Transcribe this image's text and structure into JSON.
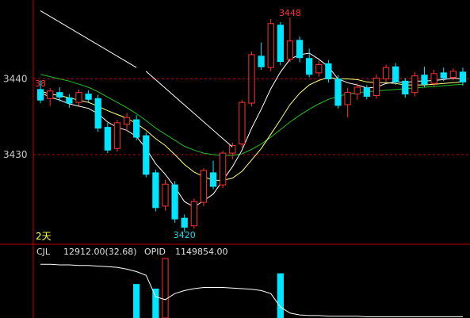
{
  "chart_data": {
    "type": "candlestick",
    "y_ticks": [
      {
        "value": 3440,
        "label": "3440"
      },
      {
        "value": 3430,
        "label": "3430"
      }
    ],
    "ylim": [
      3419,
      3450
    ],
    "colors": {
      "up": "#ff3030",
      "down": "#00e5ff",
      "ma_short": "#ffffff",
      "ma_mid": "#ffff80",
      "ma_long": "#20c020",
      "axis": "#c00000",
      "grid": "#c00000"
    },
    "annotations": {
      "peak": {
        "value": 3448,
        "label": "3448"
      },
      "trough": {
        "value": 3420,
        "label": "3420"
      },
      "left_mark": "38",
      "period": "2天"
    },
    "trendlines": [
      {
        "from": [
          0.0,
          3449.0
        ],
        "to": [
          10.0,
          3441.5
        ]
      },
      {
        "from": [
          11.0,
          3441.0
        ],
        "to": [
          20.0,
          3431.0
        ]
      }
    ],
    "candles": [
      [
        3438.6,
        3439.8,
        3436.8,
        3437.2
      ],
      [
        3437.4,
        3438.8,
        3436.4,
        3438.4
      ],
      [
        3438.2,
        3438.9,
        3437.0,
        3437.6
      ],
      [
        3437.5,
        3438.0,
        3436.2,
        3436.8
      ],
      [
        3436.9,
        3438.6,
        3436.5,
        3438.2
      ],
      [
        3438.0,
        3438.5,
        3436.9,
        3437.3
      ],
      [
        3437.4,
        3437.9,
        3433.0,
        3433.5
      ],
      [
        3433.6,
        3434.2,
        3430.2,
        3430.6
      ],
      [
        3430.8,
        3434.6,
        3430.4,
        3434.2
      ],
      [
        3434.0,
        3435.5,
        3433.1,
        3434.9
      ],
      [
        3434.6,
        3435.2,
        3431.9,
        3432.3
      ],
      [
        3432.5,
        3432.9,
        3427.0,
        3427.4
      ],
      [
        3427.6,
        3428.0,
        3422.5,
        3423.0
      ],
      [
        3423.2,
        3426.7,
        3422.6,
        3426.1
      ],
      [
        3426.0,
        3426.5,
        3421.0,
        3421.5
      ],
      [
        3421.6,
        3422.1,
        3419.8,
        3420.4
      ],
      [
        3420.6,
        3424.2,
        3420.2,
        3423.8
      ],
      [
        3423.7,
        3428.2,
        3423.2,
        3427.9
      ],
      [
        3427.6,
        3429.2,
        3425.4,
        3425.8
      ],
      [
        3426.0,
        3430.5,
        3425.6,
        3430.2
      ],
      [
        3430.2,
        3431.6,
        3429.4,
        3431.2
      ],
      [
        3431.4,
        3437.2,
        3430.9,
        3436.9
      ],
      [
        3436.8,
        3443.6,
        3436.4,
        3443.2
      ],
      [
        3443.0,
        3444.8,
        3441.2,
        3441.6
      ],
      [
        3441.5,
        3447.9,
        3441.0,
        3447.3
      ],
      [
        3447.1,
        3447.5,
        3441.8,
        3442.3
      ],
      [
        3442.6,
        3448.1,
        3442.2,
        3445.0
      ],
      [
        3445.1,
        3445.6,
        3442.2,
        3442.8
      ],
      [
        3442.7,
        3444.0,
        3440.2,
        3440.6
      ],
      [
        3440.8,
        3442.4,
        3440.3,
        3441.9
      ],
      [
        3442.0,
        3442.5,
        3439.5,
        3440.0
      ],
      [
        3440.0,
        3440.5,
        3436.1,
        3436.5
      ],
      [
        3436.6,
        3438.8,
        3434.9,
        3438.2
      ],
      [
        3438.0,
        3439.4,
        3437.2,
        3438.9
      ],
      [
        3438.8,
        3439.2,
        3437.3,
        3437.7
      ],
      [
        3437.8,
        3440.6,
        3437.4,
        3440.1
      ],
      [
        3440.0,
        3441.9,
        3439.6,
        3441.5
      ],
      [
        3441.6,
        3442.1,
        3439.2,
        3439.6
      ],
      [
        3439.7,
        3440.1,
        3437.5,
        3438.0
      ],
      [
        3438.2,
        3440.9,
        3437.7,
        3440.4
      ],
      [
        3440.5,
        3441.6,
        3438.9,
        3439.3
      ],
      [
        3439.4,
        3441.2,
        3439.0,
        3440.7
      ],
      [
        3440.8,
        3441.5,
        3439.7,
        3440.1
      ],
      [
        3440.2,
        3441.4,
        3439.8,
        3441.0
      ],
      [
        3440.9,
        3441.5,
        3439.1,
        3439.6
      ]
    ],
    "ma_short": [
      3438.2,
      3437.6,
      3437.2,
      3436.7,
      3436.4,
      3436.1,
      3435.4,
      3434.3,
      3433.6,
      3433.2,
      3432.4,
      3430.8,
      3428.8,
      3427.4,
      3425.7,
      3423.8,
      3423.1,
      3423.9,
      3424.8,
      3426.6,
      3428.4,
      3430.6,
      3433.5,
      3436.0,
      3438.7,
      3440.9,
      3442.6,
      3443.2,
      3443.4,
      3442.6,
      3441.6,
      3440.0,
      3439.5,
      3439.2,
      3438.8,
      3438.9,
      3439.4,
      3439.6,
      3439.5,
      3439.7,
      3439.7,
      3439.8,
      3439.9,
      3440.1,
      3440.0
    ],
    "ma_mid": [
      3438.4,
      3438.0,
      3437.8,
      3437.5,
      3437.2,
      3436.9,
      3436.4,
      3435.8,
      3435.3,
      3434.8,
      3434.1,
      3433.2,
      3432.1,
      3431.2,
      3430.0,
      3428.7,
      3427.7,
      3427.1,
      3426.6,
      3426.6,
      3426.9,
      3427.8,
      3429.3,
      3430.8,
      3432.7,
      3434.6,
      3436.6,
      3438.1,
      3439.2,
      3439.8,
      3440.2,
      3440.0,
      3440.0,
      3439.9,
      3439.6,
      3439.5,
      3439.5,
      3439.4,
      3439.2,
      3439.2,
      3439.2,
      3439.3,
      3439.4,
      3439.5,
      3439.6
    ],
    "ma_long": [
      3440.6,
      3440.3,
      3440.0,
      3439.7,
      3439.3,
      3438.9,
      3438.3,
      3437.6,
      3436.9,
      3436.2,
      3435.4,
      3434.5,
      3433.5,
      3432.7,
      3431.9,
      3431.1,
      3430.6,
      3430.2,
      3430.0,
      3429.9,
      3429.9,
      3430.1,
      3430.7,
      3431.4,
      3432.3,
      3433.3,
      3434.3,
      3435.2,
      3436.0,
      3436.7,
      3437.3,
      3437.7,
      3438.0,
      3438.2,
      3438.3,
      3438.4,
      3438.5,
      3438.6,
      3438.7,
      3438.8,
      3438.9,
      3439.0,
      3439.1,
      3439.2,
      3439.3
    ],
    "volume_panel": {
      "indicator_label": "CJL",
      "volume_text": "12912.00(32.68)",
      "oi_label": "OPID",
      "oi_text": "1149854.00",
      "volume_max": 4000,
      "volumes": [
        0,
        0,
        0,
        0,
        0,
        0,
        0,
        0,
        0,
        0,
        2200,
        0,
        1900,
        3900,
        0,
        0,
        0,
        0,
        0,
        0,
        0,
        0,
        0,
        0,
        0,
        2900,
        0,
        0,
        0,
        0,
        0,
        0,
        0,
        0,
        0,
        0,
        0,
        0,
        0,
        0,
        0,
        0,
        0,
        0,
        0
      ],
      "oi_levels": [
        0.88,
        0.88,
        0.87,
        0.87,
        0.86,
        0.86,
        0.85,
        0.84,
        0.83,
        0.8,
        0.76,
        0.7,
        0.35,
        0.3,
        0.4,
        0.45,
        0.48,
        0.5,
        0.5,
        0.5,
        0.49,
        0.48,
        0.47,
        0.45,
        0.4,
        0.18,
        0.08,
        0.05,
        0.04,
        0.04,
        0.03,
        0.03,
        0.03,
        0.03,
        0.02,
        0.02,
        0.02,
        0.02,
        0.02,
        0.02,
        0.02,
        0.02,
        0.02,
        0.02,
        0.02
      ]
    }
  }
}
